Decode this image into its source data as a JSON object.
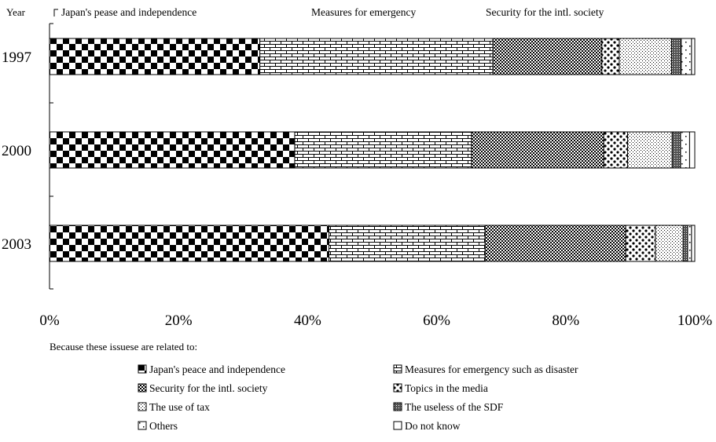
{
  "chart_data": {
    "type": "bar",
    "orientation": "horizontal",
    "stacked": true,
    "percent": true,
    "y_axis_title": "Year",
    "categories": [
      "1997",
      "2000",
      "2003"
    ],
    "x_ticks": [
      "0%",
      "20%",
      "40%",
      "60%",
      "80%",
      "100%"
    ],
    "xlim": [
      0,
      100
    ],
    "top_annotations": [
      "Japan's pease and independence",
      "Measures for emergency",
      "Security for the intl. society"
    ],
    "legend_title": "Because these issuese are related to:",
    "series": [
      {
        "name": "Japan's peace and independence",
        "values": [
          32.6,
          38.0,
          43.3
        ],
        "pattern": "checker"
      },
      {
        "name": "Measures for emergency such as disaster",
        "values": [
          36.1,
          27.4,
          24.2
        ],
        "pattern": "brick"
      },
      {
        "name": "Security for the intl. society",
        "values": [
          16.9,
          20.5,
          21.8
        ],
        "pattern": "finecheck"
      },
      {
        "name": "Topics in the media",
        "values": [
          2.7,
          3.7,
          4.6
        ],
        "pattern": "blobs"
      },
      {
        "name": "The use of tax",
        "values": [
          8.1,
          6.9,
          4.3
        ],
        "pattern": "dots"
      },
      {
        "name": "The useless of the SDF",
        "values": [
          1.5,
          1.3,
          0.7
        ],
        "pattern": "dense"
      },
      {
        "name": "Others",
        "values": [
          1.6,
          1.4,
          0.6
        ],
        "pattern": "sparse"
      },
      {
        "name": "Do not know",
        "values": [
          0.5,
          0.8,
          0.5
        ],
        "pattern": "white"
      }
    ],
    "legend_layout": "two columns below chart",
    "grid": false
  }
}
